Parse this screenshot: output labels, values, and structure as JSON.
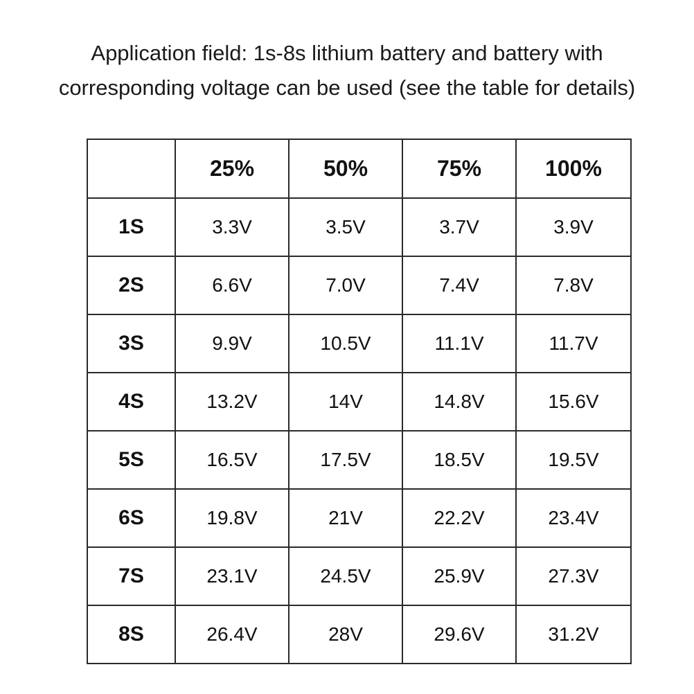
{
  "title": {
    "line1": "Application field: 1s-8s lithium battery and battery with",
    "line2": "corresponding voltage can be used (see the table for details)"
  },
  "table": {
    "headers": [
      "",
      "25%",
      "50%",
      "75%",
      "100%"
    ],
    "rows": [
      {
        "label": "1S",
        "values": [
          "3.3V",
          "3.5V",
          "3.7V",
          "3.9V"
        ]
      },
      {
        "label": "2S",
        "values": [
          "6.6V",
          "7.0V",
          "7.4V",
          "7.8V"
        ]
      },
      {
        "label": "3S",
        "values": [
          "9.9V",
          "10.5V",
          "11.1V",
          "11.7V"
        ]
      },
      {
        "label": "4S",
        "values": [
          "13.2V",
          "14V",
          "14.8V",
          "15.6V"
        ]
      },
      {
        "label": "5S",
        "values": [
          "16.5V",
          "17.5V",
          "18.5V",
          "19.5V"
        ]
      },
      {
        "label": "6S",
        "values": [
          "19.8V",
          "21V",
          "22.2V",
          "23.4V"
        ]
      },
      {
        "label": "7S",
        "values": [
          "23.1V",
          "24.5V",
          "25.9V",
          "27.3V"
        ]
      },
      {
        "label": "8S",
        "values": [
          "26.4V",
          "28V",
          "29.6V",
          "31.2V"
        ]
      }
    ]
  }
}
